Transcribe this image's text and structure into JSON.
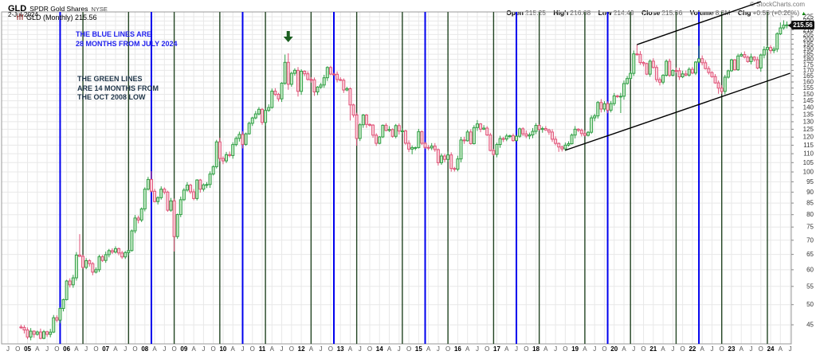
{
  "header": {
    "symbol": "GLD",
    "name": "SPDR Gold Shares",
    "exchange": "NYSE",
    "date": "2-Jul-2024",
    "copyright": "© StockCharts.com",
    "quote": {
      "open_label": "Open",
      "open": "215.25",
      "high_label": "High",
      "high": "216.08",
      "low_label": "Low",
      "low": "214.49",
      "close_label": "Close",
      "close": "215.56",
      "volume_label": "Volume",
      "volume": "8.5M",
      "chg_label": "Chg",
      "chg": "+0.55 (+0.26%)",
      "chg_direction": "up"
    }
  },
  "legend": {
    "label": "GLD (Monthly) 215.56"
  },
  "price_bubble": "215.56",
  "annotations": {
    "blue_note": {
      "text": "THE BLUE LINES ARE\n28 MONTHS FROM JULY 2024",
      "color": "#2222ee"
    },
    "green_note": {
      "text": "THE GREEN LINES\nARE 14 MONTHS FROM\nTHE OCT 2008 LOW",
      "color": "#1e3448"
    },
    "down_arrow": {
      "month": "2011-09",
      "color": "#1b5e20"
    }
  },
  "chart_data": {
    "type": "candlestick",
    "symbol": "GLD",
    "timeframe": "monthly",
    "title": "GLD (Monthly) 215.56",
    "y_axis": {
      "scale": "log",
      "min": 41,
      "max": 230,
      "ticks": [
        45,
        50,
        55,
        60,
        65,
        70,
        75,
        80,
        85,
        90,
        95,
        100,
        105,
        110,
        115,
        120,
        125,
        130,
        135,
        140,
        145,
        150,
        155,
        160,
        165,
        170,
        175,
        180,
        185,
        190,
        195,
        200,
        205,
        210,
        215,
        220,
        225
      ]
    },
    "x_axis": {
      "start": "2004-07",
      "end": "2024-07",
      "year_labels": [
        "05",
        "06",
        "07",
        "08",
        "09",
        "10",
        "11",
        "12",
        "13",
        "14",
        "15",
        "16",
        "17",
        "18",
        "19",
        "20",
        "21",
        "22",
        "23",
        "24"
      ],
      "quarter_letters": [
        "A",
        "J",
        "O"
      ],
      "grid_every_months": 3
    },
    "start_month": "2004-11",
    "first_open": 44.49,
    "closes": [
      44.38,
      43.8,
      42.22,
      43.53,
      42.82,
      43.35,
      41.92,
      43.4,
      42.81,
      43.32,
      46.7,
      46.12,
      49.01,
      51.33,
      56.58,
      55.46,
      57.51,
      64.78,
      64.36,
      60.73,
      62.91,
      61.94,
      59.25,
      60.01,
      64.21,
      62.99,
      64.92,
      66.31,
      65.79,
      67.0,
      65.49,
      64.16,
      65.63,
      66.33,
      73.51,
      78.62,
      77.79,
      82.46,
      91.4,
      96.18,
      90.41,
      85.65,
      87.42,
      91.4,
      90.0,
      81.88,
      85.97,
      71.34,
      80.05,
      86.52,
      90.96,
      93.35,
      90.14,
      87.05,
      95.89,
      91.4,
      93.47,
      93.65,
      98.91,
      102.79,
      117.01,
      107.31,
      105.96,
      109.43,
      108.95,
      115.36,
      119.17,
      121.68,
      115.49,
      122.04,
      128.91,
      132.62,
      135.42,
      138.72,
      129.52,
      137.91,
      140.03,
      152.55,
      149.97,
      146.49,
      158.97,
      177.31,
      158.06,
      167.41,
      170.06,
      152.33,
      169.23,
      166.99,
      162.12,
      161.82,
      151.92,
      155.82,
      157.48,
      163.57,
      172.62,
      166.72,
      166.6,
      162.02,
      161.45,
      153.43,
      154.47,
      141.93,
      134.62,
      119.11,
      127.96,
      134.62,
      128.18,
      127.74,
      121.18,
      116.12,
      120.08,
      127.62,
      124.21,
      124.81,
      120.45,
      127.41,
      123.8,
      123.94,
      116.21,
      112.66,
      113.58,
      113.58,
      123.45,
      116.16,
      113.66,
      113.39,
      114.45,
      112.37,
      104.96,
      108.69,
      106.77,
      109.3,
      101.82,
      101.46,
      107.03,
      118.17,
      117.7,
      123.23,
      115.94,
      126.07,
      128.54,
      125.04,
      125.72,
      121.32,
      111.86,
      109.61,
      115.4,
      119.06,
      118.77,
      120.67,
      120.81,
      117.78,
      120.51,
      125.27,
      122.01,
      120.67,
      121.35,
      123.65,
      127.53,
      124.86,
      125.44,
      124.52,
      123.17,
      118.65,
      116.09,
      113.93,
      112.78,
      115.02,
      115.89,
      121.25,
      125.02,
      124.36,
      122.2,
      121.06,
      123.03,
      132.66,
      134.0,
      143.77,
      138.89,
      142.84,
      138.08,
      142.9,
      148.79,
      148.33,
      148.52,
      158.69,
      162.91,
      167.37,
      185.28,
      184.83,
      177.11,
      176.16,
      166.67,
      178.36,
      172.61,
      161.97,
      159.83,
      165.66,
      178.28,
      165.63,
      169.9,
      169.67,
      164.38,
      166.92,
      165.87,
      170.96,
      167.64,
      177.57,
      180.65,
      176.91,
      171.6,
      168.1,
      164.56,
      159.25,
      154.94,
      152.34,
      164.06,
      169.64,
      179.62,
      170.54,
      183.27,
      184.63,
      182.1,
      177.97,
      182.27,
      179.72,
      172.11,
      184.24,
      189.51,
      191.59,
      188.45,
      189.95,
      205.72,
      212.23,
      215.3,
      215.6
    ],
    "last_bar": {
      "month": "2024-07",
      "open": 215.25,
      "high": 216.08,
      "low": 214.49,
      "close": 215.56
    },
    "overrides": {
      "2006-05": {
        "high": 72.26
      },
      "2008-03": {
        "high": 100.44
      },
      "2008-10": {
        "low": 66.0
      },
      "2008-11": {
        "low": 70.5
      },
      "2009-12": {
        "high": 119.54
      },
      "2010-07": {
        "low": 113.08
      },
      "2011-08": {
        "high": 184.59
      },
      "2011-09": {
        "high": 185.85,
        "low": 153.61
      },
      "2011-12": {
        "low": 148.27
      },
      "2012-05": {
        "low": 148.84
      },
      "2013-04": {
        "low": 130.81
      },
      "2013-06": {
        "low": 114.68
      },
      "2014-11": {
        "low": 109.67
      },
      "2015-07": {
        "low": 103.43
      },
      "2015-12": {
        "low": 100.23
      },
      "2016-07": {
        "high": 131.15
      },
      "2018-08": {
        "low": 111.06
      },
      "2020-03": {
        "low": 136.04
      },
      "2020-08": {
        "high": 194.45
      },
      "2021-03": {
        "low": 157.13
      },
      "2022-03": {
        "high": 193.3
      },
      "2022-09": {
        "low": 150.46
      },
      "2022-11": {
        "low": 150.1
      },
      "2023-10": {
        "low": 168.8
      },
      "2024-05": {
        "high": 220.89
      },
      "2024-04": {
        "high": 218.3
      }
    },
    "vertical_lines": {
      "blue": {
        "rule": "every 28 months counted back from July 2024",
        "color": "#0000ee",
        "months": [
          "2005-11",
          "2008-03",
          "2010-07",
          "2012-11",
          "2015-03",
          "2017-07",
          "2019-11",
          "2022-03"
        ]
      },
      "green": {
        "rule": "every 14 months from the Oct 2008 low",
        "color": "#224422",
        "months": [
          "2006-06",
          "2007-08",
          "2008-10",
          "2009-12",
          "2011-02",
          "2012-04",
          "2013-06",
          "2014-08",
          "2015-10",
          "2016-12",
          "2018-02",
          "2019-04",
          "2020-06",
          "2021-08",
          "2022-10",
          "2023-12"
        ]
      }
    },
    "trendlines": [
      {
        "name": "lower-channel",
        "from": {
          "month": "2018-10",
          "price": 112.0
        },
        "to": {
          "month": "2024-07",
          "price": 167.5
        }
      },
      {
        "name": "upper-channel",
        "from": {
          "month": "2020-08",
          "price": 194.45
        },
        "to": {
          "month": "2023-10",
          "price": 243.5
        }
      }
    ],
    "colors": {
      "up": "#2f9e44",
      "up_fill": "#c9ecc9",
      "down": "#e0557a",
      "down_fill": "#fbd3dc",
      "grid": "#e8e8e8",
      "border": "#999999",
      "axis_text": "#333333",
      "trend": "#000000"
    }
  }
}
